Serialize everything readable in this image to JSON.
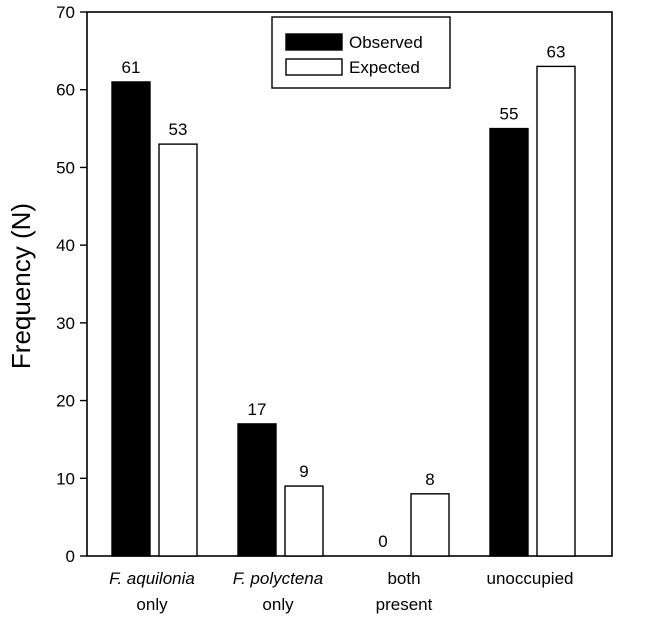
{
  "chart_data": {
    "type": "bar",
    "title": "",
    "xlabel": "",
    "ylabel": "Frequency (N)",
    "ylim": [
      0,
      70
    ],
    "yticks": [
      0,
      10,
      20,
      30,
      40,
      50,
      60,
      70
    ],
    "grid": false,
    "legend_position": "top-center",
    "categories": [
      {
        "line1": "F. aquilonia",
        "line1_italic": true,
        "line2": "only"
      },
      {
        "line1": "F. polyctena",
        "line1_italic": true,
        "line2": "only"
      },
      {
        "line1": "both",
        "line1_italic": false,
        "line2": "present"
      },
      {
        "line1": "unoccupied",
        "line1_italic": false,
        "line2": ""
      }
    ],
    "series": [
      {
        "name": "Observed",
        "color": "#000000",
        "fill": "#000000",
        "values": [
          61,
          17,
          0,
          55
        ]
      },
      {
        "name": "Expected",
        "color": "#000000",
        "fill": "#ffffff",
        "values": [
          53,
          9,
          8,
          63
        ]
      }
    ]
  }
}
